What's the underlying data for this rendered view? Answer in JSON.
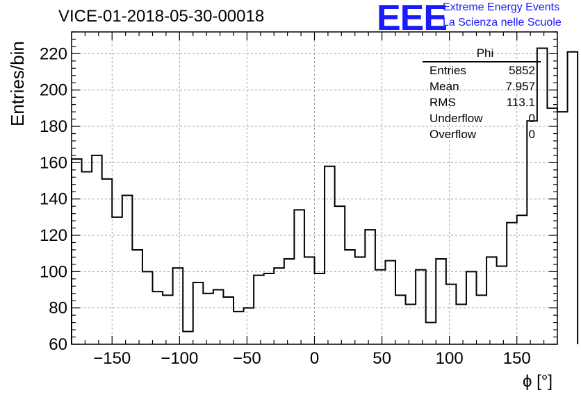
{
  "chart_data": {
    "type": "histogram",
    "title": "VICE-01-2018-05-30-00018",
    "xlabel": "ϕ [°]",
    "ylabel": "Entries/bin",
    "xlim": [
      -180,
      180
    ],
    "ylim": [
      60,
      232
    ],
    "bin_width": 7.5,
    "x_ticks": [
      -150,
      -100,
      -50,
      0,
      50,
      100,
      150
    ],
    "x_tick_labels": [
      "−150",
      "−100",
      "−50",
      "0",
      "50",
      "100",
      "150"
    ],
    "y_ticks": [
      60,
      80,
      100,
      120,
      140,
      160,
      180,
      200,
      220
    ],
    "y_tick_labels": [
      "60",
      "80",
      "100",
      "120",
      "140",
      "160",
      "180",
      "200",
      "220"
    ],
    "grid": true,
    "values": [
      162,
      155,
      164,
      151,
      130,
      142,
      112,
      100,
      89,
      87,
      102,
      67,
      94,
      88,
      90,
      86,
      78,
      80,
      98,
      99,
      102,
      107,
      134,
      108,
      99,
      158,
      136,
      112,
      108,
      123,
      101,
      106,
      87,
      82,
      101,
      72,
      107,
      93,
      82,
      100,
      87,
      108,
      103,
      127,
      131,
      183,
      223,
      190,
      188,
      221
    ]
  },
  "stats_box": {
    "title": "Phi",
    "rows": [
      {
        "label": "Entries",
        "value": "5852"
      },
      {
        "label": "Mean",
        "value": "7.957"
      },
      {
        "label": "RMS",
        "value": "113.1"
      },
      {
        "label": "Underflow",
        "value": "0"
      },
      {
        "label": "Overflow",
        "value": "0"
      }
    ]
  },
  "logo": {
    "mark": "EEE",
    "line1": "Extreme Energy Events",
    "line2": "La Scienza nelle Scuole",
    "color": "#1a1aff"
  }
}
